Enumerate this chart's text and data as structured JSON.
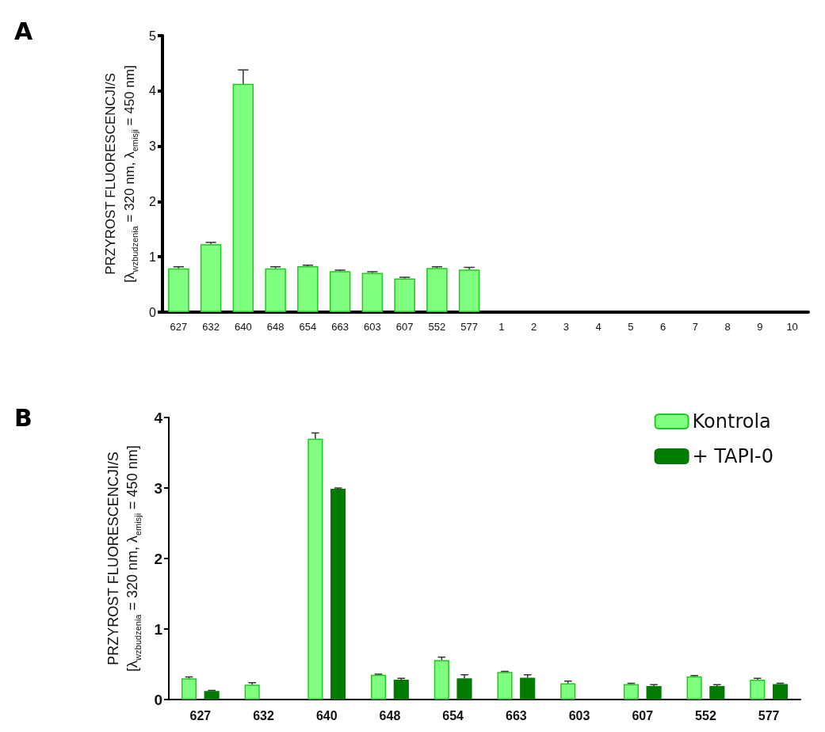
{
  "chart_data": [
    {
      "type": "bar",
      "annotations": [
        "A"
      ],
      "ylabel": "PRZYROST FLUORESCENCJI/S\n[λ$_{wzbudzenia}$ = 320 nm, λ$_{emisji}$ = 450 nm]",
      "categories": [
        "627",
        "632",
        "640",
        "648",
        "654",
        "663",
        "603",
        "607",
        "552",
        "577",
        "1",
        "2",
        "3",
        "4",
        "5",
        "6",
        "7",
        "8",
        "9",
        "10"
      ],
      "values": [
        0.79,
        1.23,
        4.13,
        0.79,
        0.83,
        0.74,
        0.71,
        0.61,
        0.8,
        0.77,
        null,
        null,
        null,
        null,
        null,
        null,
        null,
        null,
        null,
        null
      ],
      "errors": [
        [
          0.79,
          0.82
        ],
        [
          1.23,
          1.26
        ],
        [
          4.13,
          4.38
        ],
        [
          0.79,
          0.82
        ],
        [
          0.83,
          0.85
        ],
        [
          0.74,
          0.76
        ],
        [
          0.71,
          0.73
        ],
        [
          0.61,
          0.63
        ],
        [
          0.8,
          0.82
        ],
        [
          0.77,
          0.81
        ],
        null,
        null,
        null,
        null,
        null,
        null,
        null,
        null,
        null,
        null
      ],
      "color": "#80ff80",
      "ylim": [
        0,
        5
      ],
      "yticks": [
        0,
        1,
        2,
        3,
        4,
        5
      ],
      "grid": false,
      "legend": false
    },
    {
      "type": "bar",
      "annotations": [
        "B"
      ],
      "ylabel": "PRZYROST FLUORESCENCJI/S\n[λ$_{wzbudzenia}$ = 320 nm, λ$_{emisji}$ = 450 nm]",
      "categories": [
        "627",
        "632",
        "640",
        "648",
        "654",
        "663",
        "603",
        "607",
        "552",
        "577"
      ],
      "series": [
        {
          "name": "Kontrola",
          "color": "#80ff80",
          "values": [
            0.3,
            0.21,
            3.7,
            0.35,
            0.56,
            0.39,
            0.23,
            0.22,
            0.33,
            0.28
          ],
          "errors": [
            [
              0.3,
              0.32
            ],
            [
              0.21,
              0.24
            ],
            [
              3.7,
              3.78
            ],
            [
              0.35,
              0.36
            ],
            [
              0.56,
              0.6
            ],
            [
              0.39,
              0.4
            ],
            [
              0.23,
              0.26
            ],
            [
              0.22,
              0.23
            ],
            [
              0.33,
              0.34
            ],
            [
              0.28,
              0.3
            ]
          ]
        },
        {
          "name": "+ TAPI-0",
          "color": "#007a00",
          "values": [
            0.12,
            null,
            2.99,
            0.28,
            0.3,
            0.31,
            null,
            0.19,
            0.19,
            0.22
          ],
          "errors": [
            [
              0.12,
              0.13
            ],
            null,
            [
              2.99,
              3.0
            ],
            [
              0.28,
              0.3
            ],
            [
              0.3,
              0.35
            ],
            [
              0.31,
              0.35
            ],
            null,
            [
              0.19,
              0.21
            ],
            [
              0.19,
              0.21
            ],
            [
              0.22,
              0.23
            ]
          ]
        }
      ],
      "ylim": [
        0,
        4
      ],
      "yticks": [
        0,
        1,
        2,
        3,
        4
      ],
      "grid": false,
      "legend": "top right"
    }
  ]
}
